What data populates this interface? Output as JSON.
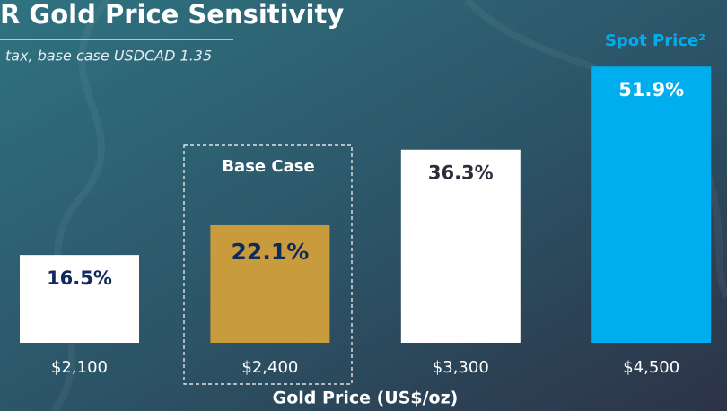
{
  "chart_data": {
    "type": "bar",
    "title": "R Gold Price Sensitivity",
    "subtitle": "tax, base case USDCAD 1.35",
    "x_label": "Gold Price (US$/oz)",
    "categories": [
      "$2,100",
      "$2,400",
      "$3,300",
      "$4,500"
    ],
    "values": [
      16.5,
      22.1,
      36.3,
      51.9
    ],
    "value_labels": [
      "16.5%",
      "22.1%",
      "36.3%",
      "51.9%"
    ],
    "colors": [
      "#ffffff",
      "#c89b3c",
      "#ffffff",
      "#00aeef"
    ],
    "label_colors": [
      "#0f2a5e",
      "#0f2a5e",
      "#2b2d3a",
      "#ffffff"
    ],
    "annotations": [
      "Base Case",
      "Spot Price²"
    ]
  }
}
